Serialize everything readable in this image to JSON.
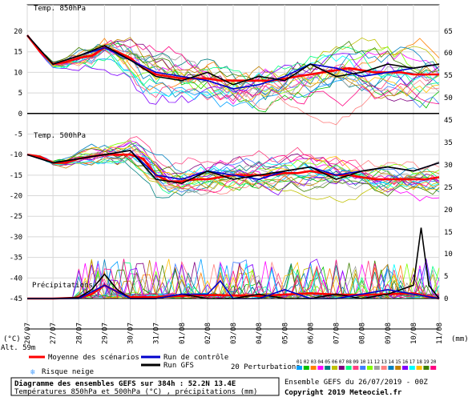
{
  "chart_data": {
    "type": "line",
    "title": "Diagramme des ensembles GEFS sur 384h : 52.2N 13.4E",
    "subtitle": "Températures 850hPa et 500hPa (°C) , précipitations (mm)",
    "credit_line": "Ensemble GEFS du 26/07/2019 - 00Z",
    "copyright": "Copyright 2019 Meteociel.fr",
    "panel_labels": {
      "t850": "Temp. 850hPa",
      "t500": "Temp. 500hPa",
      "precip": "Précipitations"
    },
    "alt_label": "Alt. 59m",
    "left_unit": "(°C)",
    "right_unit": "(mm)",
    "x_dates": [
      "26/07",
      "27/07",
      "28/07",
      "29/07",
      "30/07",
      "31/07",
      "01/08",
      "02/08",
      "03/08",
      "04/08",
      "05/08",
      "06/08",
      "07/08",
      "08/08",
      "09/08",
      "10/08",
      "11/08"
    ],
    "y_left_ticks": [
      20,
      15,
      10,
      5,
      0,
      -5,
      -10,
      -15,
      -20,
      -25,
      -30,
      -35,
      -40,
      -45
    ],
    "y_right_ticks_top": [
      65,
      60,
      55,
      50,
      45
    ],
    "y_right_ticks_mid": [
      35,
      30,
      25,
      20
    ],
    "y_right_ticks_bot": [
      15,
      10,
      5,
      0
    ],
    "legend": {
      "moyenne": "Moyenne des scénarios",
      "controle": "Run de contrôle",
      "gfs": "Run GFS",
      "risque": "Risque neige",
      "perturbations": "20 Perturbations",
      "pert_numbers": [
        "01",
        "02",
        "03",
        "04",
        "05",
        "06",
        "07",
        "08",
        "09",
        "10",
        "11",
        "12",
        "13",
        "14",
        "15",
        "16",
        "17",
        "18",
        "19",
        "20"
      ]
    },
    "colors": {
      "moyenne": "#ff0000",
      "controle": "#0000cc",
      "gfs": "#000000",
      "perturbations": [
        "#00a0ff",
        "#00c000",
        "#ff8000",
        "#ff00ff",
        "#008080",
        "#c0c000",
        "#800080",
        "#00ff80",
        "#ff4080",
        "#4080ff",
        "#80ff00",
        "#a0a0a0",
        "#ff8080",
        "#0080c0",
        "#c08000",
        "#8000ff",
        "#00ffff",
        "#ffc000",
        "#408000",
        "#ff0080"
      ]
    },
    "series": [
      {
        "name": "Moyenne des scénarios",
        "panel": "t850",
        "x_day": [
          0,
          0.5,
          1,
          1.5,
          2,
          2.5,
          3,
          3.5,
          4,
          4.5,
          5,
          5.5,
          6,
          6.5,
          7,
          7.5,
          8,
          8.5,
          9,
          9.5,
          10,
          10.5,
          11,
          11.5,
          12,
          12.5,
          13,
          13.5,
          14,
          14.5,
          15,
          15.5,
          16
        ],
        "values": [
          19,
          15,
          12,
          12.5,
          13.5,
          14,
          16,
          15,
          13.5,
          11,
          9.5,
          9,
          8.5,
          8.5,
          8.5,
          8,
          8,
          8,
          8,
          8,
          8.5,
          9,
          9.5,
          10,
          10.5,
          11,
          10.5,
          10,
          10,
          10,
          9.5,
          9.5,
          9.5
        ]
      },
      {
        "name": "Run de contrôle",
        "panel": "t850",
        "x_day": [
          0,
          1,
          2,
          3,
          4,
          5,
          6,
          7,
          8,
          9,
          10,
          11,
          12,
          13,
          14,
          15,
          16
        ],
        "values": [
          19,
          12,
          14,
          16,
          13,
          10,
          9,
          8,
          6,
          7,
          9,
          12,
          11,
          9,
          10,
          11,
          12
        ]
      },
      {
        "name": "Run GFS",
        "panel": "t850",
        "x_day": [
          0,
          1,
          2,
          3,
          4,
          5,
          6,
          7,
          8,
          9,
          10,
          11,
          12,
          13,
          14,
          15,
          16
        ],
        "values": [
          19,
          12,
          14,
          16.5,
          13,
          9,
          8,
          10,
          7,
          9,
          8,
          12,
          9,
          10,
          12,
          11,
          12
        ]
      },
      {
        "name": "Moyenne des scénarios",
        "panel": "t500",
        "x_day": [
          0,
          0.5,
          1,
          1.5,
          2,
          2.5,
          3,
          3.5,
          4,
          4.5,
          5,
          5.5,
          6,
          6.5,
          7,
          7.5,
          8,
          8.5,
          9,
          9.5,
          10,
          10.5,
          11,
          11.5,
          12,
          12.5,
          13,
          13.5,
          14,
          14.5,
          15,
          15.5,
          16
        ],
        "values": [
          -10,
          -10.5,
          -12,
          -12,
          -11,
          -10.5,
          -10,
          -10,
          -10,
          -11,
          -15,
          -16.5,
          -16.5,
          -16,
          -16,
          -15.5,
          -15,
          -15,
          -15,
          -15,
          -14.5,
          -14.5,
          -14,
          -14.5,
          -15,
          -15,
          -15.5,
          -16,
          -16,
          -16,
          -16,
          -16,
          -15.5
        ]
      },
      {
        "name": "Run de contrôle",
        "panel": "t500",
        "x_day": [
          0,
          1,
          2,
          3,
          4,
          5,
          6,
          7,
          8,
          9,
          10,
          11,
          12,
          13,
          14,
          15,
          16
        ],
        "values": [
          -10,
          -12,
          -11,
          -10,
          -9,
          -15,
          -16,
          -14,
          -15,
          -16,
          -14,
          -13,
          -15,
          -14,
          -13,
          -14,
          -12
        ]
      },
      {
        "name": "Run GFS",
        "panel": "t500",
        "x_day": [
          0,
          1,
          2,
          3,
          4,
          5,
          6,
          7,
          8,
          9,
          10,
          11,
          12,
          13,
          14,
          15,
          16
        ],
        "values": [
          -10,
          -12,
          -11,
          -10,
          -9,
          -16,
          -17,
          -14,
          -16,
          -15,
          -14,
          -13,
          -16,
          -14,
          -13,
          -14,
          -12
        ]
      },
      {
        "name": "Moyenne des scénarios",
        "panel": "precip",
        "x_day": [
          0,
          1,
          2,
          2.5,
          3,
          3.5,
          4,
          5,
          6,
          7,
          8,
          9,
          10,
          11,
          12,
          13,
          14,
          15,
          16
        ],
        "values": [
          0,
          0,
          0.2,
          1,
          3,
          1.5,
          0.3,
          0.3,
          0.6,
          0.8,
          0.7,
          0.6,
          0.9,
          1.2,
          0.9,
          0.8,
          1.0,
          1.2,
          0
        ]
      },
      {
        "name": "Run GFS",
        "panel": "precip",
        "x_day": [
          0,
          1,
          2,
          2.5,
          3,
          3.5,
          4,
          5,
          6,
          7,
          8,
          9,
          10,
          11,
          12,
          13,
          14,
          15,
          15.3,
          15.6,
          16
        ],
        "values": [
          0,
          0,
          0.2,
          2,
          5.5,
          2,
          0,
          0,
          1,
          0,
          0,
          1,
          0,
          0,
          1,
          0,
          1,
          3,
          16,
          3,
          0
        ]
      },
      {
        "name": "Run de contrôle",
        "panel": "precip",
        "x_day": [
          0,
          1,
          2,
          3,
          4,
          5,
          6,
          7,
          7.5,
          8,
          9,
          10,
          11,
          12,
          13,
          14,
          15,
          16
        ],
        "values": [
          0,
          0,
          0,
          3,
          0,
          0,
          1,
          1,
          4,
          0,
          0,
          2,
          0,
          0,
          1,
          2,
          1,
          0
        ]
      }
    ]
  }
}
